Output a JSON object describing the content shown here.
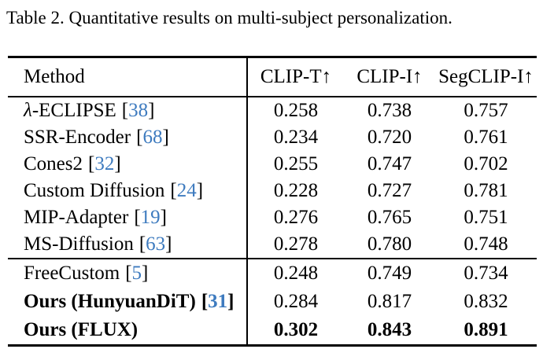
{
  "caption": "Table 2. Quantitative results on multi-subject personalization.",
  "colors": {
    "citation": "#3e7bbf",
    "text": "#000000",
    "background": "#ffffff"
  },
  "punct": {
    "open": "[",
    "close": "]"
  },
  "header": {
    "method": "Method",
    "clip_t": "CLIP-T↑",
    "clip_i": "CLIP-I↑",
    "segclip_i": "SegCLIP-I↑"
  },
  "groups": [
    {
      "rows": [
        {
          "name_prefix": "λ",
          "name": "-ECLIPSE",
          "ref": "38",
          "clip_t": "0.258",
          "clip_i": "0.738",
          "segclip_i": "0.757"
        },
        {
          "name": "SSR-Encoder",
          "ref": "68",
          "clip_t": "0.234",
          "clip_i": "0.720",
          "segclip_i": "0.761"
        },
        {
          "name": "Cones2",
          "ref": "32",
          "clip_t": "0.255",
          "clip_i": "0.747",
          "segclip_i": "0.702"
        },
        {
          "name": "Custom Diffusion",
          "ref": "24",
          "clip_t": "0.228",
          "clip_i": "0.727",
          "segclip_i": "0.781"
        },
        {
          "name": "MIP-Adapter",
          "ref": "19",
          "clip_t": "0.276",
          "clip_i": "0.765",
          "segclip_i": "0.751"
        },
        {
          "name": "MS-Diffusion",
          "ref": "63",
          "clip_t": "0.278",
          "clip_i": "0.780",
          "segclip_i": "0.748"
        }
      ]
    },
    {
      "rows": [
        {
          "name": "FreeCustom",
          "ref": "5",
          "clip_t": "0.248",
          "clip_i": "0.749",
          "segclip_i": "0.734",
          "label_bold": false,
          "values_bold": false
        },
        {
          "name": "Ours (HunyuanDiT)",
          "ref": "31",
          "clip_t": "0.284",
          "clip_i": "0.817",
          "segclip_i": "0.832",
          "label_bold": true,
          "values_bold": false
        },
        {
          "name": "Ours (FLUX)",
          "clip_t": "0.302",
          "clip_i": "0.843",
          "segclip_i": "0.891",
          "label_bold": true,
          "values_bold": true
        }
      ]
    }
  ]
}
